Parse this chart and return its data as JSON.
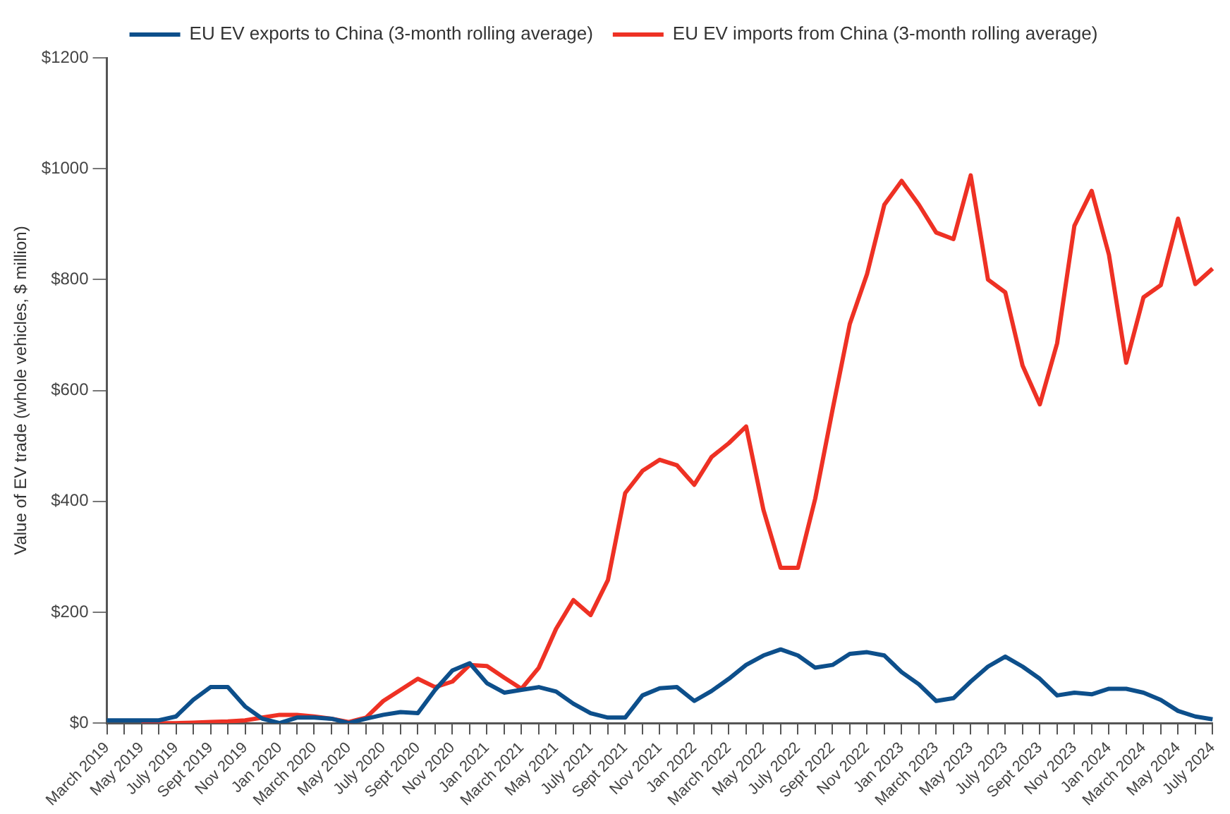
{
  "chart_data": {
    "type": "line",
    "ylabel": "Value of EV trade (whole vehicles, $ million)",
    "categories": [
      "March 2019",
      null,
      "May 2019",
      null,
      "July 2019",
      null,
      "Sept 2019",
      null,
      "Nov 2019",
      null,
      "Jan 2020",
      null,
      "March 2020",
      null,
      "May 2020",
      null,
      "July 2020",
      null,
      "Sept 2020",
      null,
      "Nov 2020",
      null,
      "Jan 2021",
      null,
      "March 2021",
      null,
      "May 2021",
      null,
      "July 2021",
      null,
      "Sept 2021",
      null,
      "Nov 2021",
      null,
      "Jan 2022",
      null,
      "March 2022",
      null,
      "May 2022",
      null,
      "July 2022",
      null,
      "Sept 2022",
      null,
      "Nov 2022",
      null,
      "Jan 2023",
      null,
      "March 2023",
      null,
      "May 2023",
      null,
      "July 2023",
      null,
      "Sept 2023",
      null,
      "Nov 2023",
      null,
      "Jan 2024",
      null,
      "March 2024",
      null,
      "May 2024",
      null,
      "July 2024"
    ],
    "series": [
      {
        "name": "EU EV exports to China (3-month rolling average)",
        "color": "#0d4f8b",
        "values": [
          5,
          5,
          5,
          5,
          12,
          42,
          65,
          65,
          30,
          8,
          0,
          10,
          10,
          8,
          0,
          8,
          15,
          20,
          18,
          60,
          95,
          108,
          72,
          55,
          60,
          65,
          57,
          35,
          18,
          10,
          10,
          50,
          63,
          65,
          40,
          58,
          80,
          105,
          122,
          133,
          122,
          100,
          105,
          125,
          128,
          122,
          92,
          70,
          40,
          45,
          75,
          102,
          120,
          102,
          80,
          50,
          55,
          52,
          62,
          62,
          55,
          42,
          22,
          12,
          7
        ]
      },
      {
        "name": "EU EV imports from China (3-month rolling average)",
        "color": "#ee3124",
        "values": [
          null,
          null,
          0,
          0,
          0,
          1,
          2,
          3,
          5,
          10,
          15,
          15,
          12,
          8,
          2,
          10,
          40,
          60,
          80,
          65,
          75,
          105,
          103,
          82,
          62,
          100,
          170,
          222,
          195,
          258,
          415,
          455,
          475,
          465,
          430,
          480,
          505,
          535,
          385,
          280,
          280,
          405,
          565,
          720,
          810,
          935,
          978,
          935,
          885,
          873,
          988,
          800,
          777,
          645,
          575,
          685,
          897,
          960,
          845,
          650,
          768,
          790,
          910,
          792,
          820
        ]
      }
    ],
    "ylim": [
      0,
      1200
    ],
    "yticks": [
      {
        "value": 0,
        "label": "$0"
      },
      {
        "value": 200,
        "label": "$200"
      },
      {
        "value": 400,
        "label": "$400"
      },
      {
        "value": 600,
        "label": "$600"
      },
      {
        "value": 800,
        "label": "$800"
      },
      {
        "value": 1000,
        "label": "$1000"
      },
      {
        "value": 1200,
        "label": "$1200"
      }
    ],
    "grid": false,
    "legend": "top",
    "marker": "none",
    "line_style": "solid"
  }
}
